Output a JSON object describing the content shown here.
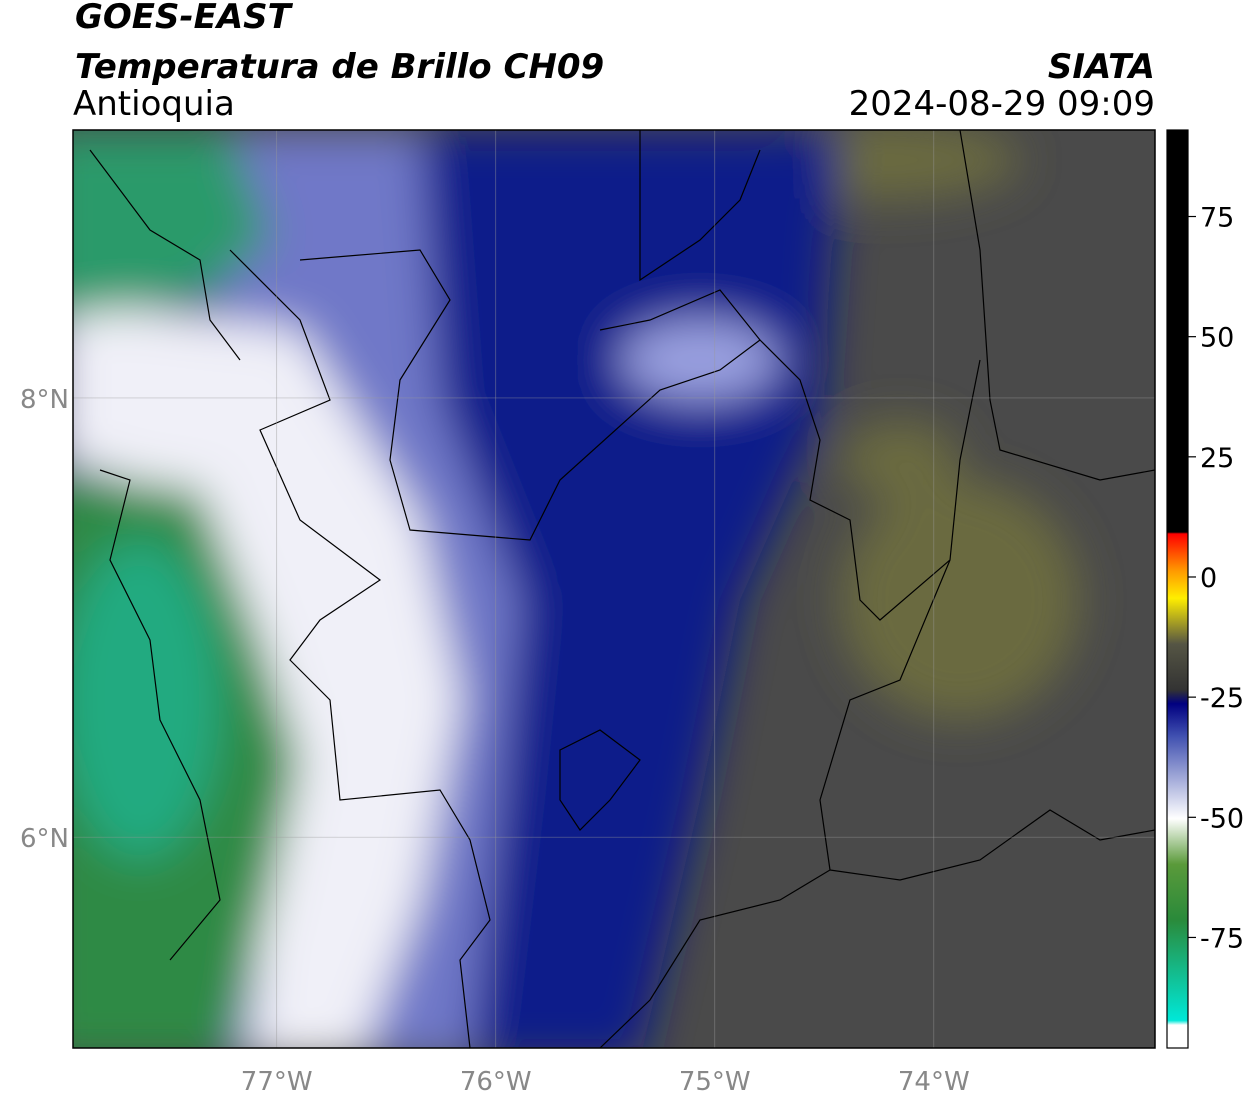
{
  "header": {
    "satellite": "GOES-EAST",
    "product": "Temperatura de Brillo CH09",
    "region": "Antioquia",
    "agency": "SIATA",
    "datetime": "2024-08-29 09:09"
  },
  "map": {
    "lon_lim": [
      -77.93,
      -72.99
    ],
    "lat_lim": [
      5.04,
      9.22
    ],
    "lon_ticks": [
      {
        "value": -77,
        "label": "77°W"
      },
      {
        "value": -76,
        "label": "76°W"
      },
      {
        "value": -75,
        "label": "75°W"
      },
      {
        "value": -74,
        "label": "74°W"
      }
    ],
    "lat_ticks": [
      {
        "value": 8,
        "label": "8°N"
      },
      {
        "value": 6,
        "label": "6°N"
      }
    ],
    "grid": true
  },
  "colorbar": {
    "lim": [
      -98,
      93
    ],
    "ticks": [
      75,
      50,
      25,
      0,
      -25,
      -50,
      -75
    ]
  }
}
